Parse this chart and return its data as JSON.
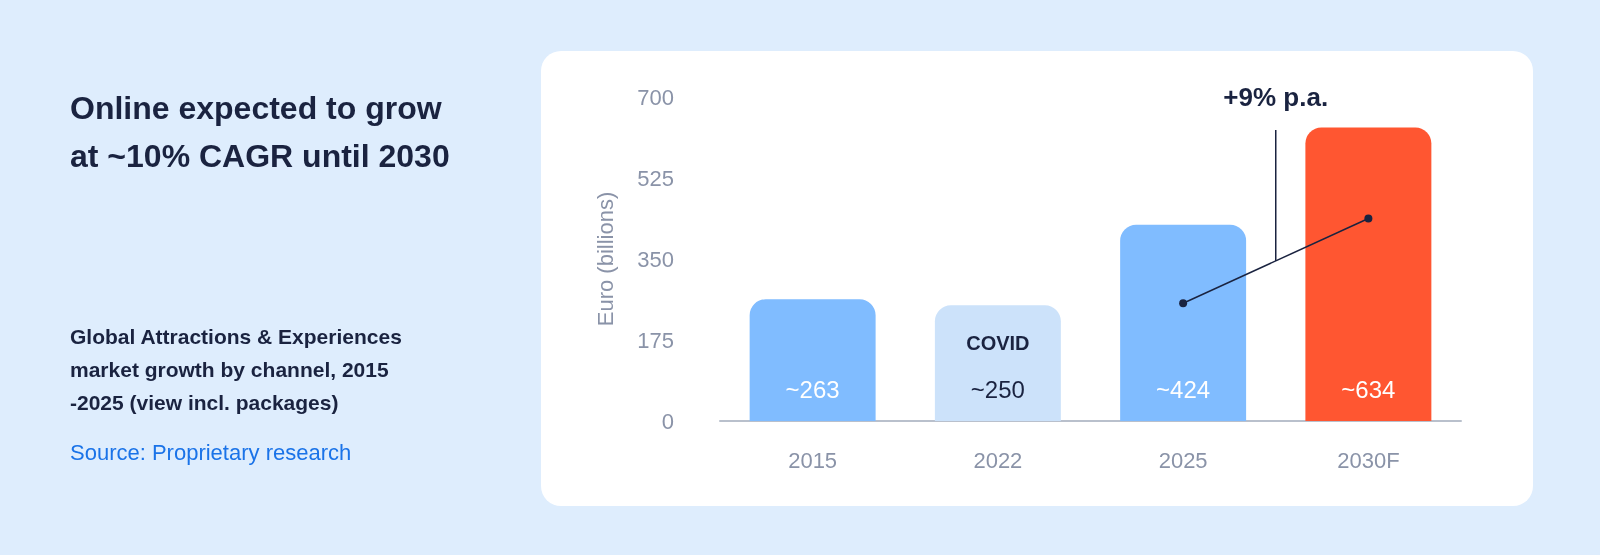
{
  "chart_data": {
    "type": "bar",
    "title": "Online expected to grow at ~10% CAGR until 2030",
    "subtitle": "Global Attractions & Experiences market growth by channel, 2015 -2025 (view incl. packages)",
    "ylabel": "Euro (billions)",
    "categories": [
      "2015",
      "2022",
      "2025",
      "2030F"
    ],
    "values": [
      263,
      250,
      424,
      634
    ],
    "colors": [
      "#80bcff",
      "#cce2fa",
      "#80bcff",
      "#ff5631"
    ],
    "value_labels": [
      "~263",
      "~250",
      "~424",
      "~634"
    ],
    "ylim": [
      0,
      700
    ],
    "yticks": [
      0,
      175,
      350,
      525,
      700
    ],
    "annotations": [
      "COVID",
      "+9% p.a.",
      "Source: Proprietary research"
    ]
  }
}
